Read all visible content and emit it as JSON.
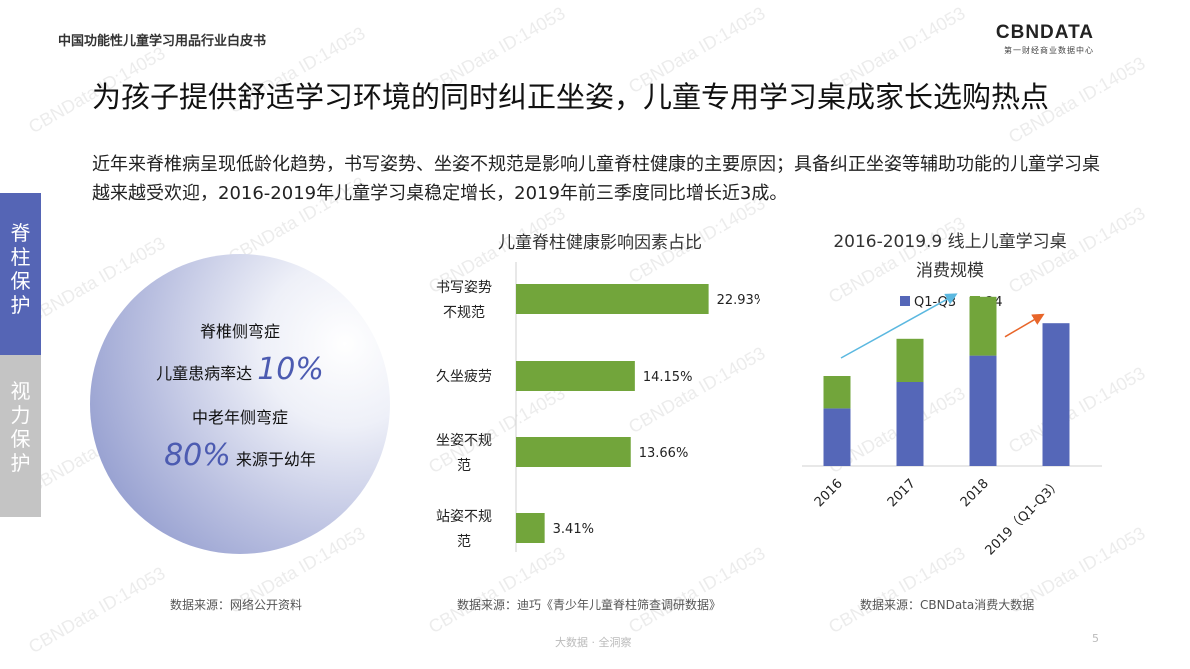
{
  "header": {
    "left_title": "中国功能性儿童学习用品行业白皮书"
  },
  "logo": {
    "brand": "CBNDATA",
    "subtitle": "第一财经商业数据中心"
  },
  "headline": "为孩子提供舒适学习环境的同时纠正坐姿，儿童专用学习桌成家长选购热点",
  "summary": "近年来脊椎病呈现低龄化趋势，书写姿势、坐姿不规范是影响儿童脊柱健康的主要原因；具备纠正坐姿等辅助功能的儿童学习桌越来越受欢迎，2016-2019年儿童学习桌稳定增长，2019年前三季度同比增长近3成。",
  "side_tabs": [
    {
      "label": "脊柱保护"
    },
    {
      "label": "视力保护"
    }
  ],
  "circle": {
    "line1": "脊椎侧弯症",
    "line2_prefix": "儿童患病率达",
    "line2_pct": "10%",
    "line3": "中老年侧弯症",
    "line4_pct": "80%",
    "line4_suffix": "来源于幼年"
  },
  "sources": {
    "left": "数据来源：网络公开资料",
    "middle": "数据来源：迪巧《青少年儿童脊柱筛查调研数据》",
    "right": "数据来源：CBNData消费大数据"
  },
  "footer": {
    "center": "大数据 · 全洞察",
    "page": "5"
  },
  "watermark": "CBNData ID:14053",
  "colors": {
    "accent": "#5565b5",
    "bar_green": "#72a53b",
    "bar_blue": "#5567b8",
    "arrow_blue": "#5bb8e0",
    "arrow_orange": "#e8662a"
  },
  "chart_data": [
    {
      "type": "bar",
      "orientation": "horizontal",
      "title": "儿童脊柱健康影响因素占比",
      "categories": [
        "书写姿势不规范",
        "久坐疲劳",
        "坐姿不规范",
        "站姿不规范"
      ],
      "category_lines": [
        [
          "书写姿势",
          "不规范"
        ],
        [
          "久坐疲劳"
        ],
        [
          "坐姿不规",
          "范"
        ],
        [
          "站姿不规",
          "范"
        ]
      ],
      "values": [
        22.93,
        14.15,
        13.66,
        3.41
      ],
      "labels": [
        "22.93%",
        "14.15%",
        "13.66%",
        "3.41%"
      ],
      "color": "#72a53b"
    },
    {
      "type": "bar",
      "stacked": true,
      "title_lines": [
        "2016-2019.9 线上儿童学习桌",
        "消费规模"
      ],
      "categories": [
        "2016",
        "2017",
        "2018",
        "2019（Q1-Q3）"
      ],
      "series": [
        {
          "name": "Q1-Q3",
          "values": [
            48,
            70,
            92,
            119
          ],
          "color": "#5567b8"
        },
        {
          "name": "Q4",
          "values": [
            27,
            36,
            49,
            0
          ],
          "color": "#72a53b"
        }
      ],
      "legend_position": "top",
      "grid": false
    }
  ]
}
